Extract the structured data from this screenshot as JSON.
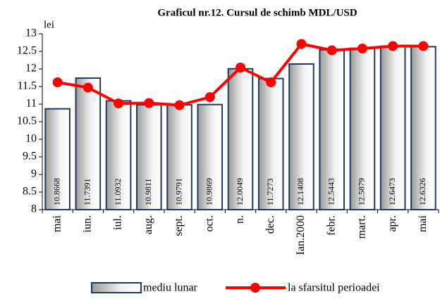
{
  "chart_data": {
    "type": "bar",
    "title": "Graficul nr.12. Cursul de schimb MDL/USD",
    "y_label": "lei",
    "categories": [
      "mai",
      "iun.",
      "iul.",
      "aug.",
      "sept.",
      "oct.",
      "n.",
      "dec.",
      "Ian.2000",
      "febr.",
      "mart.",
      "apr.",
      "mai"
    ],
    "series": [
      {
        "name": "mediu lunar",
        "type": "bar",
        "color": "#1f3a60",
        "values": [
          10.8668,
          11.7391,
          11.0932,
          10.9811,
          10.9791,
          10.9869,
          12.0049,
          11.7273,
          12.1408,
          12.5443,
          12.5879,
          12.6473,
          12.6326
        ]
      },
      {
        "name": "la sfarsitul perioadei",
        "type": "line",
        "color": "#ff0000",
        "values": [
          11.62,
          11.47,
          11.02,
          11.03,
          10.97,
          11.2,
          12.04,
          11.62,
          12.71,
          12.53,
          12.58,
          12.65,
          12.65
        ]
      }
    ],
    "ylim": [
      8,
      13
    ],
    "yticks": [
      8,
      8.5,
      9,
      9.5,
      10,
      10.5,
      11,
      11.5,
      12,
      12.5,
      13
    ],
    "grid": false
  }
}
